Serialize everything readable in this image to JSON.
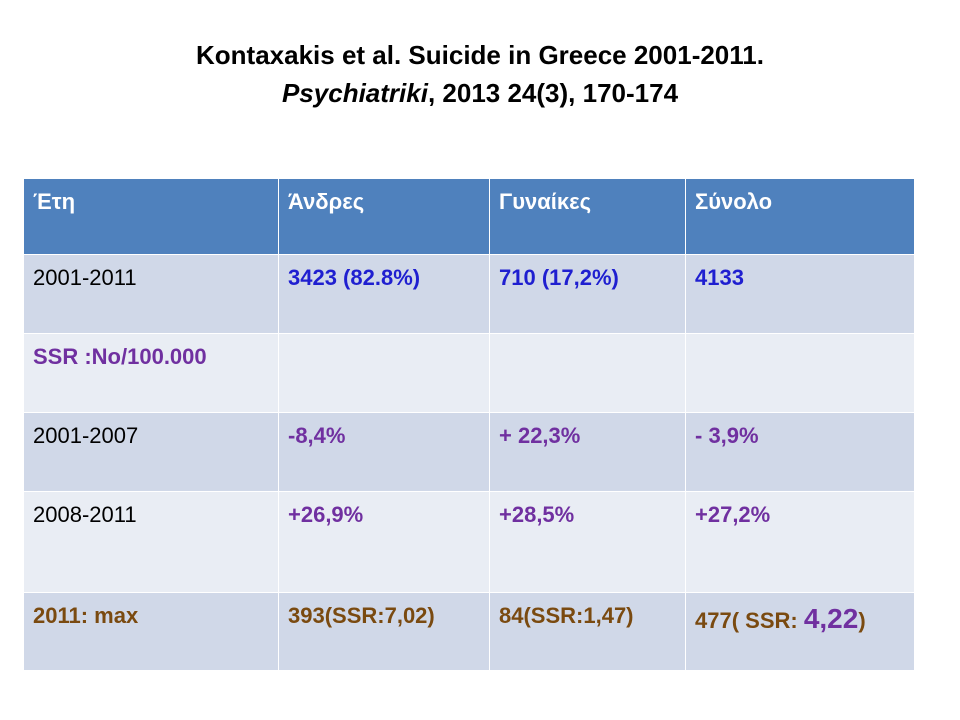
{
  "title": {
    "line1": "Kontaxakis  et al. Suicide in Greece 2001-2011.",
    "journal": "Psychiatriki",
    "line2_rest": ", 2013 24(3), 170-174"
  },
  "table": {
    "headers": [
      "Έτη",
      "Άνδρες",
      "Γυναίκες",
      "Σύνολο"
    ],
    "rows": [
      [
        "2001-2011",
        "3423 (82.8%)",
        "710 (17,2%)",
        "4133"
      ],
      [
        "SSR :No/100.000",
        "",
        "",
        ""
      ],
      [
        "2001-2007",
        "-8,4%",
        "+ 22,3%",
        "- 3,9%"
      ],
      [
        "2008-2011",
        "+26,9%",
        "+28,5%",
        "+27,2%"
      ],
      [
        "2011:  max",
        "393(SSR:7,02)",
        "84(SSR:1,47)",
        ""
      ]
    ],
    "last_total": {
      "prefix": "477( SSR: ",
      "value": "4,22",
      "suffix": ")"
    }
  },
  "colors": {
    "header_bg": "#4f81bd",
    "row_dark": "#d0d8e8",
    "row_light": "#e9edf4",
    "blue_text": "#1f1fd0",
    "purple_text": "#7030a0",
    "brown_text": "#7a4a10"
  }
}
